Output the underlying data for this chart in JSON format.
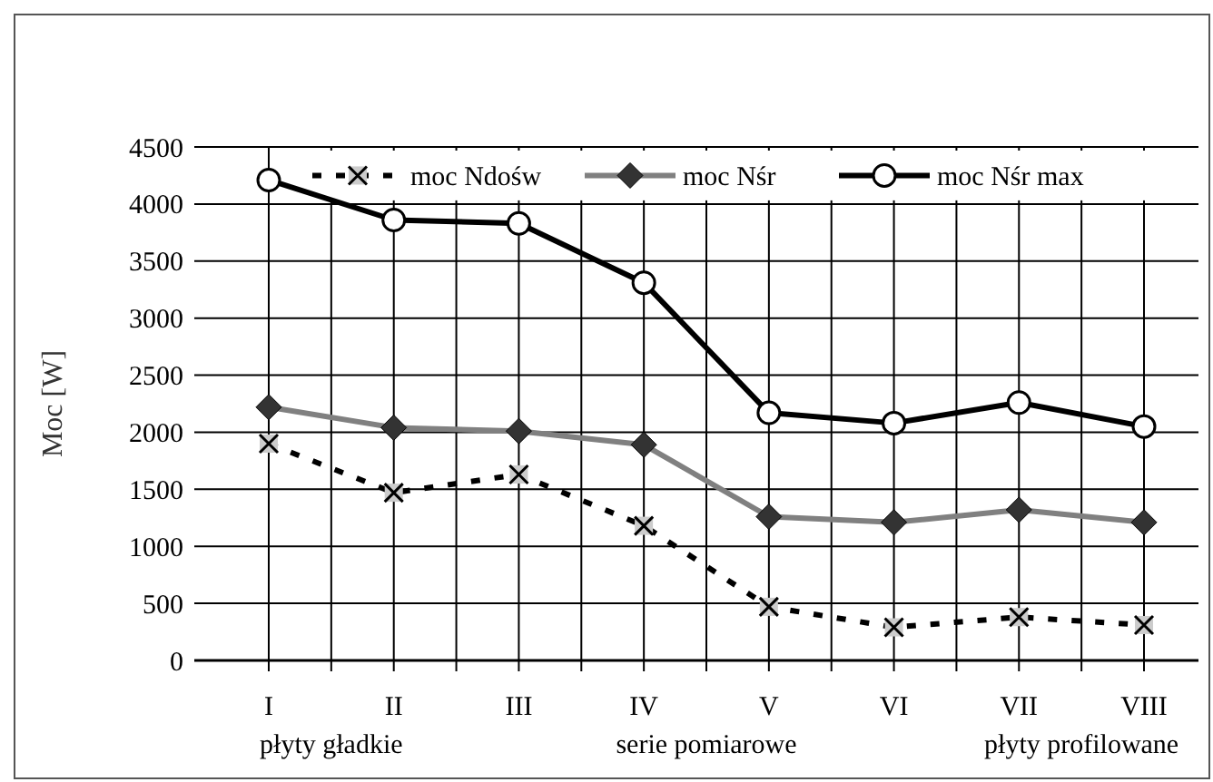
{
  "chart_data": {
    "type": "line",
    "ylabel": "Moc [W]",
    "categories": [
      "I",
      "II",
      "III",
      "IV",
      "V",
      "VI",
      "VII",
      "VIII"
    ],
    "series": [
      {
        "name": "moc Ndośw",
        "color": "#000000",
        "marker": "cross",
        "line_style": "dashed",
        "values": [
          1900,
          1470,
          1630,
          1180,
          470,
          290,
          380,
          310
        ]
      },
      {
        "name": "moc Nśr",
        "color": "#808080",
        "marker": "diamond",
        "line_style": "solid",
        "values": [
          2220,
          2040,
          2010,
          1890,
          1260,
          1210,
          1320,
          1210
        ]
      },
      {
        "name": "moc Nśr max",
        "color": "#000000",
        "marker": "circle",
        "line_style": "solid",
        "values": [
          4210,
          3860,
          3830,
          3310,
          2170,
          2080,
          2260,
          2050
        ]
      }
    ],
    "ylim": [
      0,
      4500
    ],
    "yticks": [
      0,
      500,
      1000,
      1500,
      2000,
      2500,
      3000,
      3500,
      4000,
      4500
    ],
    "grid": true,
    "legend": "top",
    "annotations": [
      "płyty gładkie",
      "serie pomiarowe",
      "płyty profilowane"
    ]
  }
}
